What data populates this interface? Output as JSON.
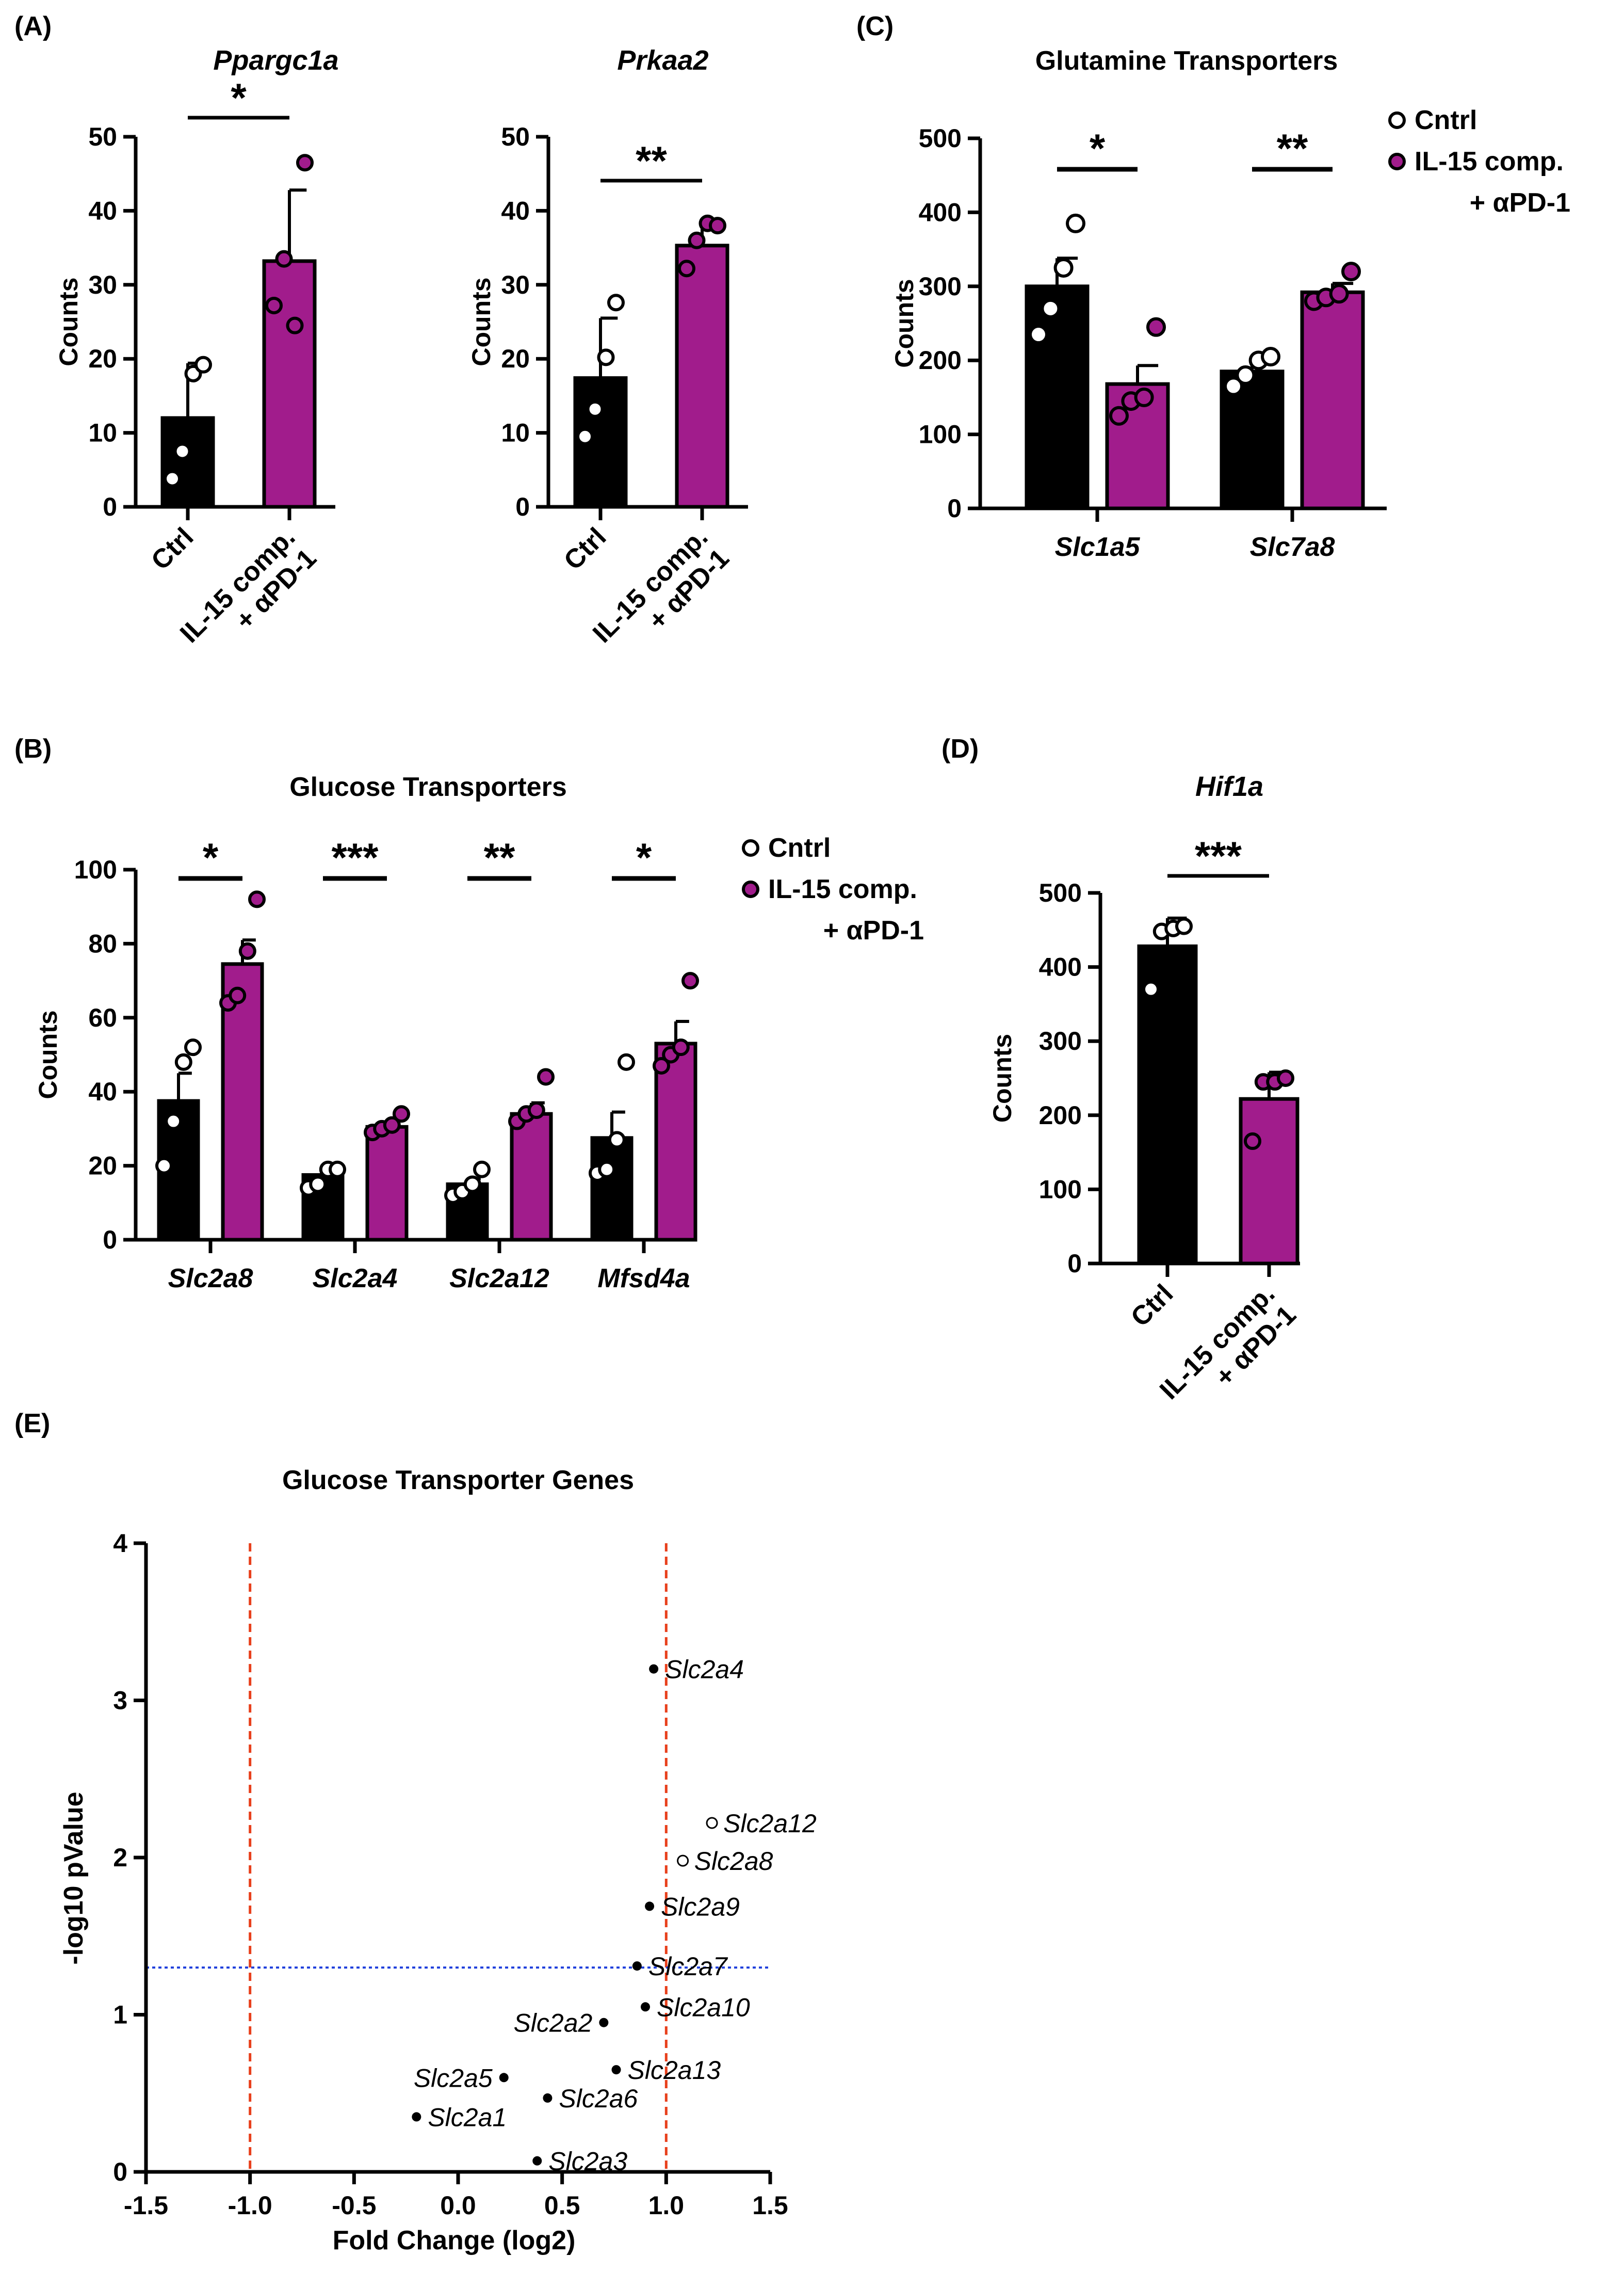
{
  "colors": {
    "ctrl": "#000000",
    "treat": "#a11c8c",
    "threshold_x": "#e8401c",
    "threshold_y": "#1f3fdc"
  },
  "chart_data": [
    {
      "id": "A1",
      "type": "bar",
      "panel_label": "(A)",
      "title": "Ppargc1a",
      "ylabel": "Counts",
      "ylim": [
        0,
        50
      ],
      "yticks": [
        0,
        10,
        20,
        30,
        40,
        50
      ],
      "categories": [
        "Ctrl",
        "IL-15 comp.|+ αPD-1"
      ],
      "values": [
        12,
        33.2
      ],
      "errors": [
        7.4,
        9.6
      ],
      "points": [
        [
          3.8,
          7.5,
          18.0,
          19.2
        ],
        [
          27.2,
          33.5,
          24.5,
          46.5
        ]
      ],
      "significance": "*"
    },
    {
      "id": "A2",
      "type": "bar",
      "title": "Prkaa2",
      "ylabel": "Counts",
      "ylim": [
        0,
        50
      ],
      "yticks": [
        0,
        10,
        20,
        30,
        40,
        50
      ],
      "categories": [
        "Ctrl",
        "IL-15 comp.|+ αPD-1"
      ],
      "values": [
        17.4,
        35.3
      ],
      "errors": [
        8.1,
        2.9
      ],
      "points": [
        [
          9.5,
          13.2,
          20.2,
          27.6
        ],
        [
          32.2,
          36.0,
          38.3,
          38.0
        ]
      ],
      "significance": "**"
    },
    {
      "id": "C",
      "type": "grouped-bar",
      "panel_label": "(C)",
      "title": "Glutamine Transporters",
      "ylabel": "Counts",
      "ylim": [
        0,
        500
      ],
      "yticks": [
        0,
        100,
        200,
        300,
        400,
        500
      ],
      "categories": [
        "Slc1a5",
        "Slc7a8"
      ],
      "series": [
        {
          "name": "Cntrl",
          "values": [
            300,
            185
          ],
          "errors": [
            38,
            15
          ],
          "points": [
            [
              235,
              270,
              325,
              385
            ],
            [
              165,
              180,
              200,
              205
            ]
          ]
        },
        {
          "name": "IL-15 comp.|+ αPD-1",
          "values": [
            168,
            292
          ],
          "errors": [
            25,
            12
          ],
          "points": [
            [
              125,
              145,
              150,
              245
            ],
            [
              280,
              285,
              290,
              320
            ]
          ]
        }
      ],
      "significance": [
        "*",
        "**"
      ],
      "legend": [
        "Cntrl",
        "IL-15 comp.",
        "+ αPD-1"
      ]
    },
    {
      "id": "B",
      "type": "grouped-bar",
      "panel_label": "(B)",
      "title": "Glucose Transporters",
      "ylabel": "Counts",
      "ylim": [
        0,
        100
      ],
      "yticks": [
        0,
        20,
        40,
        60,
        80,
        100
      ],
      "categories": [
        "Slc2a8",
        "Slc2a4",
        "Slc2a12",
        "Mfsd4a"
      ],
      "series": [
        {
          "name": "Cntrl",
          "values": [
            37.5,
            17.5,
            15,
            27.5
          ],
          "errors": [
            7.5,
            2.0,
            1.5,
            7.0
          ],
          "points": [
            [
              20,
              32,
              48,
              52
            ],
            [
              14,
              15,
              19,
              19
            ],
            [
              12,
              13,
              15,
              19
            ],
            [
              18,
              19,
              27,
              48
            ]
          ]
        },
        {
          "name": "IL-15 comp.|+ αPD-1",
          "values": [
            74.5,
            30.5,
            34,
            53
          ],
          "errors": [
            6.5,
            1.5,
            3.0,
            6.0
          ],
          "points": [
            [
              64,
              66,
              78,
              92
            ],
            [
              29,
              30,
              31,
              34
            ],
            [
              32,
              34,
              35,
              44
            ],
            [
              47,
              50,
              52,
              70
            ]
          ]
        }
      ],
      "significance": [
        "*",
        "***",
        "**",
        "*"
      ],
      "legend": [
        "Cntrl",
        "IL-15 comp.",
        "+ αPD-1"
      ]
    },
    {
      "id": "D",
      "type": "bar",
      "panel_label": "(D)",
      "title": "Hif1a",
      "ylabel": "Counts",
      "ylim": [
        0,
        500
      ],
      "yticks": [
        0,
        100,
        200,
        300,
        400,
        500
      ],
      "categories": [
        "Ctrl",
        "IL-15 comp.|+ αPD-1"
      ],
      "values": [
        428,
        222
      ],
      "errors": [
        38,
        36
      ],
      "points": [
        [
          370,
          448,
          452,
          455
        ],
        [
          165,
          245,
          245,
          250
        ]
      ],
      "significance": "***"
    },
    {
      "id": "E",
      "type": "scatter",
      "panel_label": "(E)",
      "title": "Glucose Transporter Genes",
      "xlabel": "Fold Change (log2)",
      "ylabel": "-log10 pValue",
      "xlim": [
        -1.5,
        1.5
      ],
      "ylim": [
        0,
        4
      ],
      "xticks": [
        -1.5,
        -1.0,
        -0.5,
        0.0,
        0.5,
        1.0,
        1.5
      ],
      "xtick_labels": [
        "-1.5",
        "-1.0",
        "-0.5",
        "0.0",
        "0.5",
        "1.0",
        "1.5"
      ],
      "yticks": [
        0,
        1,
        2,
        3,
        4
      ],
      "vlines": [
        -1.0,
        1.0
      ],
      "hline": 1.3,
      "points": [
        {
          "label": "Slc2a4",
          "x": 0.94,
          "y": 3.2,
          "open": false
        },
        {
          "label": "Slc2a12",
          "x": 1.22,
          "y": 2.22,
          "open": true
        },
        {
          "label": "Slc2a8",
          "x": 1.08,
          "y": 1.98,
          "open": true
        },
        {
          "label": "Slc2a9",
          "x": 0.92,
          "y": 1.69,
          "open": false
        },
        {
          "label": "Slc2a7",
          "x": 0.86,
          "y": 1.31,
          "open": false
        },
        {
          "label": "Slc2a10",
          "x": 0.9,
          "y": 1.05,
          "open": false
        },
        {
          "label": "Slc2a2",
          "x": 0.7,
          "y": 0.95,
          "open": false
        },
        {
          "label": "Slc2a13",
          "x": 0.76,
          "y": 0.65,
          "open": false
        },
        {
          "label": "Slc2a5",
          "x": 0.22,
          "y": 0.6,
          "open": false
        },
        {
          "label": "Slc2a6",
          "x": 0.43,
          "y": 0.47,
          "open": false
        },
        {
          "label": "Slc2a1",
          "x": -0.2,
          "y": 0.35,
          "open": false
        },
        {
          "label": "Slc2a3",
          "x": 0.38,
          "y": 0.07,
          "open": false
        }
      ]
    }
  ]
}
